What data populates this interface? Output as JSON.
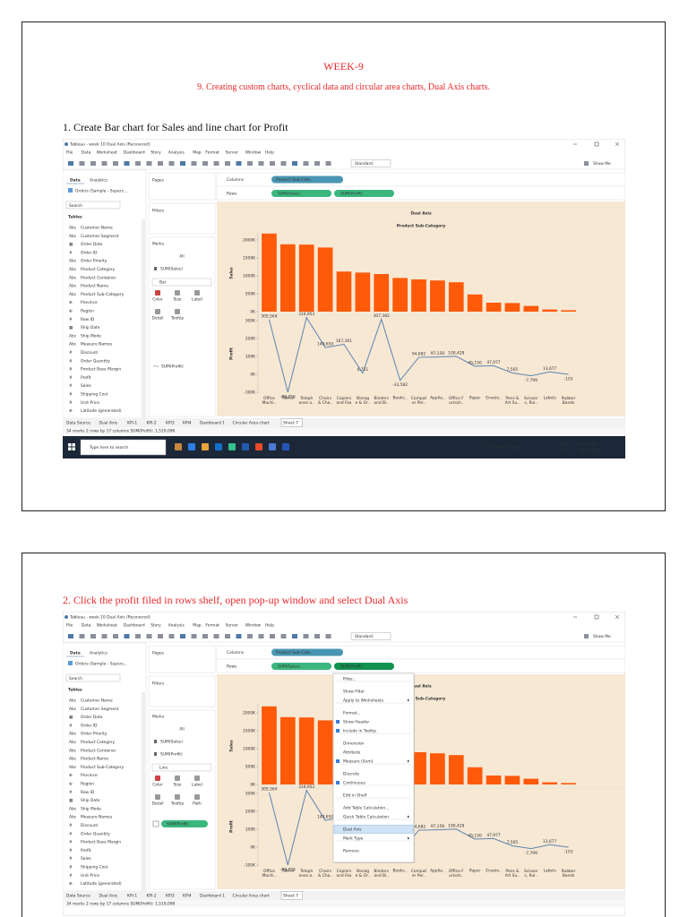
{
  "pages": [
    {
      "header": {
        "title": "WEEK-9",
        "subtitle": "9. Creating custom charts, cyclical data and circular area charts, Dual Axis charts."
      },
      "step": "1. Create Bar chart for Sales and line chart for Profit",
      "screenshot": {
        "window_title": "Tableau - week 10 Dual Axis (Recovered)",
        "menu": [
          "File",
          "Data",
          "Worksheet",
          "Dashboard",
          "Story",
          "Analysis",
          "Map",
          "Format",
          "Server",
          "Window",
          "Help"
        ],
        "toolbar": {
          "standard": "Standard",
          "show_me": "Show Me"
        },
        "data_pane": {
          "tabs": [
            "Data",
            "Analytics"
          ],
          "source": "Orders (Sample - Supers...",
          "search": "Search",
          "tables": "Tables",
          "fields": [
            {
              "icon": "Abc",
              "name": "Customer Name"
            },
            {
              "icon": "Abc",
              "name": "Customer Segment"
            },
            {
              "icon": "▦",
              "name": "Order Date"
            },
            {
              "icon": "#",
              "name": "Order ID"
            },
            {
              "icon": "Abc",
              "name": "Order Priority"
            },
            {
              "icon": "Abc",
              "name": "Product Category"
            },
            {
              "icon": "Abc",
              "name": "Product Container"
            },
            {
              "icon": "Abc",
              "name": "Product Name"
            },
            {
              "icon": "Abc",
              "name": "Product Sub-Category"
            },
            {
              "icon": "⊕",
              "name": "Province"
            },
            {
              "icon": "⊕",
              "name": "Region"
            },
            {
              "icon": "#",
              "name": "Row ID"
            },
            {
              "icon": "▦",
              "name": "Ship Date"
            },
            {
              "icon": "Abc",
              "name": "Ship Mode"
            },
            {
              "icon": "Abc",
              "name": "Measure Names"
            },
            {
              "icon": "#",
              "name": "Discount"
            },
            {
              "icon": "#",
              "name": "Order Quantity"
            },
            {
              "icon": "#",
              "name": "Product Base Margin"
            },
            {
              "icon": "#",
              "name": "Profit"
            },
            {
              "icon": "#",
              "name": "Sales"
            },
            {
              "icon": "#",
              "name": "Shipping Cost"
            },
            {
              "icon": "#",
              "name": "Unit Price"
            },
            {
              "icon": "⊕",
              "name": "Latitude (generated)"
            }
          ]
        },
        "cards": {
          "pages": "Pages",
          "filters": "Filters",
          "marks": "Marks",
          "items": [
            "All",
            "SUM(Sales)"
          ],
          "mark_type": "Bar",
          "buttons": [
            "Color",
            "Size",
            "Label",
            "Detail",
            "Tooltip"
          ],
          "tail": "SUM(Profit)",
          "tail_pill": false
        },
        "shelves": {
          "columns_label": "Columns",
          "columns": [
            "Product Sub-Cate.."
          ],
          "rows_label": "Rows",
          "rows": [
            "SUM(Sales)",
            "SUM(Profit)"
          ]
        },
        "chart": {
          "title": "Dual Axis",
          "subtitle": "Product Sub-Category",
          "categories": [
            "Office\nMachi..",
            "Tables",
            "Teleph\nones a..",
            "Chairs\n& Cha..",
            "Copiers\nand Fax",
            "Storag\ne & Or..",
            "Binders\nand Bi..",
            "Bookc..",
            "Comput\ner Per..",
            "Applia..",
            "Office F\nurnish..",
            "Paper",
            "Envelo..",
            "Pens &\nArt Su..",
            "Scissor\ns, Rul..",
            "Labels",
            "Rubber\nBands"
          ],
          "sales": {
            "axis_title": "Sales",
            "color": "#ff5a0a",
            "ylim": [
              0,
              2250000
            ],
            "yticks": [
              {
                "value": 0,
                "label": "0K"
              },
              {
                "value": 500000,
                "label": "500K"
              },
              {
                "value": 1000000,
                "label": "1000K"
              },
              {
                "value": 1500000,
                "label": "1500K"
              },
              {
                "value": 2000000,
                "label": "2000K"
              }
            ],
            "values": [
              2180000,
              1880000,
              1870000,
              1790000,
              1120000,
              1090000,
              1050000,
              940000,
              900000,
              870000,
              820000,
              480000,
              250000,
              240000,
              160000,
              60000,
              40000
            ]
          },
          "profit": {
            "axis_title": "Profit",
            "color": "#5b84b1",
            "ylim": [
              -110000,
              330000
            ],
            "yticks": [
              {
                "value": -100000,
                "label": "-100K"
              },
              {
                "value": 0,
                "label": "0K"
              },
              {
                "value": 100000,
                "label": "100K"
              },
              {
                "value": 200000,
                "label": "200K"
              },
              {
                "value": 300000,
                "label": "300K"
              }
            ],
            "values": [
              305564,
              -99756,
              316952,
              149650,
              167361,
              6751,
              307382,
              -33582,
              94682,
              97158,
              100428,
              45150,
              47977,
              7565,
              -7799,
              13677,
              -103
            ],
            "value_labels": [
              "305,564",
              "-99,756",
              "316,952",
              "149,650",
              "167,361",
              "6,751",
              "307,382",
              "-33,582",
              "94,682",
              "97,158",
              "100,428",
              "45,150",
              "47,977",
              "7,565",
              "-7,799",
              "13,677",
              "-103"
            ]
          }
        },
        "tabs": [
          "Data Source",
          "Dual Axis",
          "KPI-1",
          "KPI-2",
          "KPI3",
          "KPI4",
          "Dashboard 1",
          "Circular Area chart",
          "Sheet 7"
        ],
        "status": "34 marks   2 rows by 17 columns   SUM(Profit): 1,519,096",
        "taskbar": {
          "search": "Type here to search",
          "weather": "21°C  Mostly sunny",
          "lang": "ENG\nIN",
          "time": "10:41 AM",
          "date": "12/27/2023"
        }
      }
    },
    {
      "step": "2. Click the profit filed in rows shelf, open pop-up window and select Dual Axis",
      "screenshot": {
        "window_title": "Tableau - week 10 Dual Axis (Recovered)",
        "menu": [
          "File",
          "Data",
          "Worksheet",
          "Dashboard",
          "Story",
          "Analysis",
          "Map",
          "Format",
          "Server",
          "Window",
          "Help"
        ],
        "toolbar": {
          "standard": "Standard",
          "show_me": "Show Me"
        },
        "data_pane": {
          "tabs": [
            "Data",
            "Analytics"
          ],
          "source": "Orders (Sample - Supers...",
          "search": "Search",
          "tables": "Tables",
          "fields": [
            {
              "icon": "Abc",
              "name": "Customer Name"
            },
            {
              "icon": "Abc",
              "name": "Customer Segment"
            },
            {
              "icon": "▦",
              "name": "Order Date"
            },
            {
              "icon": "#",
              "name": "Order ID"
            },
            {
              "icon": "Abc",
              "name": "Order Priority"
            },
            {
              "icon": "Abc",
              "name": "Product Category"
            },
            {
              "icon": "Abc",
              "name": "Product Container"
            },
            {
              "icon": "Abc",
              "name": "Product Name"
            },
            {
              "icon": "Abc",
              "name": "Product Sub-Category"
            },
            {
              "icon": "⊕",
              "name": "Province"
            },
            {
              "icon": "⊕",
              "name": "Region"
            },
            {
              "icon": "#",
              "name": "Row ID"
            },
            {
              "icon": "▦",
              "name": "Ship Date"
            },
            {
              "icon": "Abc",
              "name": "Ship Mode"
            },
            {
              "icon": "Abc",
              "name": "Measure Names"
            },
            {
              "icon": "#",
              "name": "Discount"
            },
            {
              "icon": "#",
              "name": "Order Quantity"
            },
            {
              "icon": "#",
              "name": "Product Base Margin"
            },
            {
              "icon": "#",
              "name": "Profit"
            },
            {
              "icon": "#",
              "name": "Sales"
            },
            {
              "icon": "#",
              "name": "Shipping Cost"
            },
            {
              "icon": "#",
              "name": "Unit Price"
            },
            {
              "icon": "⊕",
              "name": "Latitude (generated)"
            }
          ]
        },
        "cards": {
          "pages": "Pages",
          "filters": "Filters",
          "marks": "Marks",
          "items": [
            "All",
            "SUM(Sales)",
            "SUM(Profit)"
          ],
          "mark_type": "Line",
          "buttons": [
            "Color",
            "Size",
            "Label",
            "Detail",
            "Tooltip",
            "Path"
          ],
          "tail": "SUM(Profit)",
          "tail_pill": true
        },
        "shelves": {
          "columns_label": "Columns",
          "columns": [
            "Product Sub-Cate.."
          ],
          "rows_label": "Rows",
          "rows": [
            "SUM(Sales)",
            "SUM(Profit)"
          ]
        },
        "chart": {
          "title": "Dual Axis",
          "subtitle": "Product Sub-Category",
          "categories": [
            "Office\nMachi..",
            "Tables",
            "Teleph\nones a..",
            "Chairs\n& Cha..",
            "Copiers\nand Fax",
            "Storag\ne & Or..",
            "Binders\nand Bi..",
            "Bookc..",
            "Comput\ner Per..",
            "Applia..",
            "Office F\nurnish..",
            "Paper",
            "Envelo..",
            "Pens &\nArt Su..",
            "Scissor\ns, Rul..",
            "Labels",
            "Rubber\nBands"
          ],
          "sales": {
            "axis_title": "Sales",
            "color": "#ff5a0a",
            "ylim": [
              0,
              2250000
            ],
            "yticks": [
              {
                "value": 0,
                "label": "0K"
              },
              {
                "value": 500000,
                "label": "500K"
              },
              {
                "value": 1000000,
                "label": "1000K"
              },
              {
                "value": 1500000,
                "label": "1500K"
              },
              {
                "value": 2000000,
                "label": "2000K"
              }
            ],
            "values": [
              2180000,
              1880000,
              1870000,
              1790000,
              1120000,
              1090000,
              1050000,
              940000,
              900000,
              870000,
              820000,
              480000,
              250000,
              240000,
              160000,
              60000,
              40000
            ]
          },
          "profit": {
            "axis_title": "Profit",
            "color": "#5b84b1",
            "ylim": [
              -110000,
              330000
            ],
            "yticks": [
              {
                "value": -100000,
                "label": "-100K"
              },
              {
                "value": 0,
                "label": "0K"
              },
              {
                "value": 100000,
                "label": "100K"
              },
              {
                "value": 200000,
                "label": "200K"
              },
              {
                "value": 300000,
                "label": "300K"
              }
            ],
            "values": [
              305564,
              -99756,
              316952,
              149650,
              167361,
              6751,
              307382,
              -33582,
              94682,
              97158,
              100428,
              45150,
              47977,
              7565,
              -7799,
              13677,
              -103
            ],
            "value_labels": [
              "305,564",
              "-99,756",
              "316,952",
              "149,650",
              "167,361",
              "6,751",
              "307,382",
              "-33,582",
              "94,682",
              "97,158",
              "100,428",
              "45,150",
              "47,977",
              "7,565",
              "-7,799",
              "13,677",
              "-103"
            ]
          }
        },
        "tabs": [
          "Data Source",
          "Dual Axis",
          "KPI-1",
          "KPI-2",
          "KPI3",
          "KPI4",
          "Dashboard 1",
          "Circular Area chart",
          "Sheet 7"
        ],
        "status": "34 marks   2 rows by 17 columns   SUM(Profit): 1,519,096",
        "context_menu": [
          [
            {
              "text": "Filter..."
            }
          ],
          [
            {
              "text": "Show Filter"
            },
            {
              "text": "Apply to Worksheets",
              "submenu": true
            }
          ],
          [
            {
              "text": "Format..."
            },
            {
              "text": "Show Header",
              "checked": true
            },
            {
              "text": "Include in Tooltip",
              "checked": true
            }
          ],
          [
            {
              "text": "Dimension"
            },
            {
              "text": "Attribute"
            },
            {
              "text": "Measure (Sum)",
              "checked": true,
              "submenu": true
            }
          ],
          [
            {
              "text": "Discrete"
            },
            {
              "text": "Continuous",
              "checked": true
            }
          ],
          [
            {
              "text": "Edit in Shelf"
            }
          ],
          [
            {
              "text": "Add Table Calculation..."
            },
            {
              "text": "Quick Table Calculation",
              "submenu": true
            }
          ],
          [
            {
              "text": "Dual Axis",
              "highlighted": true
            },
            {
              "text": "Mark Type",
              "submenu": true
            }
          ],
          [
            {
              "text": "Remove"
            }
          ]
        ]
      }
    }
  ]
}
